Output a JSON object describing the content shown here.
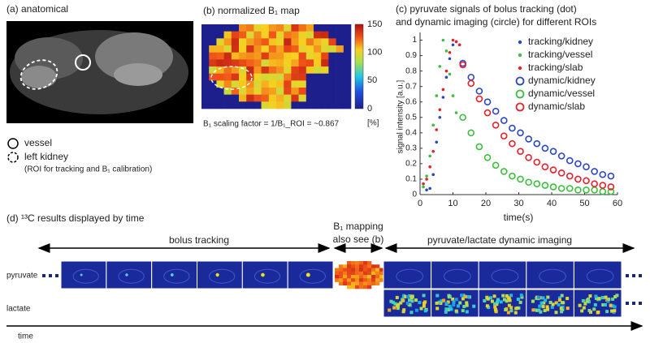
{
  "panel_a": {
    "label": "(a)  anatomical",
    "legend": [
      "vessel",
      "left kidney",
      "(ROI for tracking and B₁ calibration)"
    ]
  },
  "panel_b": {
    "label": "(b)  normalized B₁ map",
    "colorbar_ticks": [
      0,
      50,
      100,
      150
    ],
    "colorbar_unit": "[%]",
    "scaling_factor": "B₁ scaling factor = 1/B₁_ROI = ~0.867"
  },
  "chart_data": {
    "type": "scatter",
    "title": [
      "(c)  pyruvate signals of bolus tracking (dot)",
      "and dynamic imaging (circle) for different ROIs"
    ],
    "x_label": "time(s)",
    "y_label": "signal intensity [a.u.]",
    "xlim": [
      0,
      60
    ],
    "xticks": [
      0,
      10,
      20,
      30,
      40,
      50,
      60
    ],
    "ylim": [
      0,
      1.05
    ],
    "yticks": [
      0,
      0.1,
      0.2,
      0.3,
      0.4,
      0.5,
      0.6,
      0.7,
      0.8,
      0.9,
      1
    ],
    "legend": "upper right",
    "series": [
      {
        "name": "tracking/kidney",
        "color": "#2a46c8",
        "marker": "dot",
        "x": [
          2,
          3,
          4,
          5,
          6,
          7,
          8,
          9,
          10,
          11,
          12
        ],
        "values": [
          0.03,
          0.04,
          0.13,
          0.34,
          0.5,
          0.63,
          0.76,
          0.88,
          0.97,
          0.99,
          0.97
        ]
      },
      {
        "name": "tracking/vessel",
        "color": "#3cbf3c",
        "marker": "dot",
        "x": [
          1,
          2,
          3,
          4,
          5,
          6,
          7,
          8,
          9,
          10,
          11
        ],
        "values": [
          0.05,
          0.12,
          0.25,
          0.45,
          0.64,
          0.83,
          1,
          0.93,
          0.78,
          0.64,
          0.53
        ]
      },
      {
        "name": "tracking/slab",
        "color": "#e8202a",
        "marker": "dot",
        "x": [
          1,
          2,
          3,
          4,
          5,
          6,
          7,
          8,
          9,
          10,
          11,
          12
        ],
        "values": [
          0.07,
          0.1,
          0.18,
          0.28,
          0.42,
          0.55,
          0.68,
          0.8,
          0.92,
          1,
          0.99,
          0.97
        ]
      },
      {
        "name": "dynamic/kidney",
        "color": "#2a46c8",
        "marker": "circle",
        "x": [
          13,
          15.5,
          18,
          20.5,
          23,
          25.5,
          28,
          30.5,
          33,
          35.5,
          38,
          40.5,
          43,
          45.5,
          48,
          50.5,
          53,
          55.5,
          58
        ],
        "values": [
          0.85,
          0.76,
          0.67,
          0.6,
          0.54,
          0.48,
          0.43,
          0.4,
          0.36,
          0.33,
          0.3,
          0.28,
          0.25,
          0.22,
          0.2,
          0.18,
          0.15,
          0.13,
          0.12
        ]
      },
      {
        "name": "dynamic/vessel",
        "color": "#3cbf3c",
        "marker": "circle",
        "x": [
          13,
          15.5,
          18,
          20.5,
          23,
          25.5,
          28,
          30.5,
          33,
          35.5,
          38,
          40.5,
          43,
          45.5,
          48,
          50.5,
          53,
          55.5,
          58
        ],
        "values": [
          0.5,
          0.4,
          0.31,
          0.24,
          0.19,
          0.15,
          0.12,
          0.1,
          0.08,
          0.07,
          0.06,
          0.05,
          0.04,
          0.04,
          0.03,
          0.03,
          0.03,
          0.02,
          0.02
        ]
      },
      {
        "name": "dynamic/slab",
        "color": "#e8202a",
        "marker": "circle",
        "x": [
          13,
          15.5,
          18,
          20.5,
          23,
          25.5,
          28,
          30.5,
          33,
          35.5,
          38,
          40.5,
          43,
          45.5,
          48,
          50.5,
          53,
          55.5,
          58
        ],
        "values": [
          0.84,
          0.72,
          0.62,
          0.53,
          0.45,
          0.38,
          0.33,
          0.28,
          0.24,
          0.21,
          0.18,
          0.16,
          0.14,
          0.12,
          0.1,
          0.09,
          0.07,
          0.06,
          0.05
        ]
      }
    ]
  },
  "panel_d": {
    "label": "(d)  ¹³C results displayed by time",
    "segments": [
      "bolus tracking",
      "B₁ mapping",
      "also see (b)",
      "pyruvate/lactate dynamic imaging"
    ],
    "rows": [
      "pyruvate",
      "lactate"
    ],
    "axis": "time"
  }
}
